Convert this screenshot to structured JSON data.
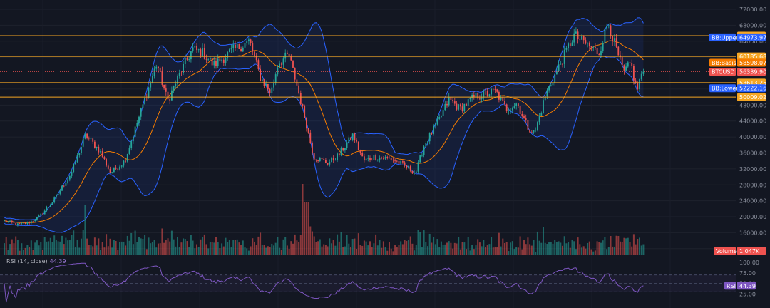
{
  "rsi_panel": {
    "title": "RSI (14, close)",
    "value": "44.39",
    "tag_label": "RSI",
    "tag_value": "44.39",
    "ticks": [
      "100.00",
      "75.00",
      "50.00",
      "25.00"
    ]
  },
  "volume_tag": {
    "label": "Volume",
    "value": "1.047K"
  },
  "price_tags": [
    {
      "name": "level-65380",
      "value": "65380.01",
      "label": "",
      "color": "#f5a623"
    },
    {
      "name": "bb-upper",
      "value": "64973.97",
      "label": "BB:Upper",
      "color": "#2962ff"
    },
    {
      "name": "level-60185",
      "value": "60185.68",
      "label": "",
      "color": "#f5a623"
    },
    {
      "name": "bb-basis",
      "value": "58598.07",
      "label": "BB:Basis",
      "color": "#f57c00"
    },
    {
      "name": "btcusd",
      "value": "56339.90",
      "label": "BTCUSD",
      "color": "#ef5350"
    },
    {
      "name": "level-53613",
      "value": "53613.25",
      "label": "",
      "color": "#f5a623"
    },
    {
      "name": "bb-lower",
      "value": "52222.16",
      "label": "BB:Lower",
      "color": "#2962ff"
    },
    {
      "name": "level-50009",
      "value": "50009.02",
      "label": "",
      "color": "#f5a623"
    }
  ],
  "colors": {
    "background": "#131722",
    "up": "#26a69a",
    "down": "#ef5350",
    "bb_band": "#2962ff",
    "bb_basis": "#f57c00",
    "level_line": "#f5a623",
    "rsi": "#7e57c2"
  },
  "chart_data": {
    "type": "candlestick",
    "symbol": "BTCUSD",
    "yaxis_ticks": [
      72000,
      68000,
      64000,
      60000,
      56000,
      52000,
      48000,
      44000,
      40000,
      36000,
      32000,
      28000,
      24000,
      20000,
      16000,
      12000
    ],
    "ylim": [
      10000,
      73000
    ],
    "price_path": [
      [
        0,
        19000
      ],
      [
        20,
        18000
      ],
      [
        35,
        18500
      ],
      [
        50,
        20000
      ],
      [
        70,
        24000
      ],
      [
        95,
        31000
      ],
      [
        115,
        40500
      ],
      [
        135,
        36500
      ],
      [
        150,
        31000
      ],
      [
        170,
        34000
      ],
      [
        190,
        45000
      ],
      [
        215,
        58500
      ],
      [
        230,
        49000
      ],
      [
        245,
        55000
      ],
      [
        265,
        62000
      ],
      [
        280,
        61000
      ],
      [
        295,
        58000
      ],
      [
        320,
        61500
      ],
      [
        345,
        64000
      ],
      [
        360,
        55000
      ],
      [
        375,
        51000
      ],
      [
        385,
        58500
      ],
      [
        400,
        60500
      ],
      [
        410,
        54000
      ],
      [
        425,
        43000
      ],
      [
        435,
        35000
      ],
      [
        455,
        33500
      ],
      [
        470,
        35500
      ],
      [
        490,
        40500
      ],
      [
        505,
        34000
      ],
      [
        520,
        35000
      ],
      [
        545,
        34500
      ],
      [
        560,
        33000
      ],
      [
        578,
        31000
      ],
      [
        590,
        38000
      ],
      [
        610,
        44000
      ],
      [
        625,
        49500
      ],
      [
        640,
        47000
      ],
      [
        660,
        50000
      ],
      [
        690,
        51500
      ],
      [
        705,
        47000
      ],
      [
        720,
        48500
      ],
      [
        735,
        42500
      ],
      [
        745,
        41000
      ],
      [
        760,
        50500
      ],
      [
        780,
        58000
      ],
      [
        800,
        65500
      ],
      [
        820,
        63000
      ],
      [
        835,
        61000
      ],
      [
        848,
        69000
      ],
      [
        860,
        61500
      ],
      [
        870,
        56000
      ],
      [
        880,
        58500
      ],
      [
        888,
        51500
      ],
      [
        895,
        56000
      ],
      [
        902,
        56339.9
      ]
    ],
    "bollinger": {
      "period": 20,
      "multiplier": 2.0,
      "upper_last": 64973.97,
      "basis_last": 58598.07,
      "lower_last": 52222.16
    },
    "horizontal_levels": [
      65380.01,
      60185.68,
      53613.25,
      50009.02
    ],
    "last_price": 56339.9,
    "volume_last": "1.047K",
    "rsi": {
      "period": 14,
      "source": "close",
      "levels": [
        70,
        50,
        30
      ],
      "ylim": [
        0,
        100
      ],
      "last": 44.39
    }
  }
}
